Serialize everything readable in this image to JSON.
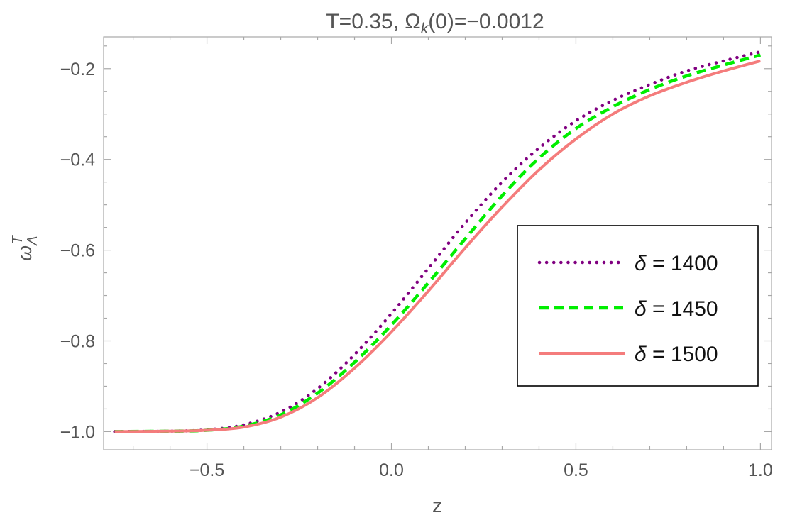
{
  "chart_data": {
    "type": "line",
    "title": "T=0.35, Ω_k(0)=−0.0012",
    "title_parts": {
      "prefix": "T=0.35, Ω",
      "subscript": "k",
      "suffix": "(0)=−0.0012"
    },
    "xlabel": "z",
    "ylabel": {
      "symbol": "ω",
      "superscript": "T",
      "subscript": "Λ"
    },
    "xlim": [
      -0.78,
      1.03
    ],
    "ylim": [
      -1.04,
      -0.13
    ],
    "x_ticks": [
      -0.5,
      0.0,
      0.5,
      1.0
    ],
    "x_tick_labels": [
      "−0.5",
      "0.0",
      "0.5",
      "1.0"
    ],
    "y_ticks": [
      -1.0,
      -0.8,
      -0.6,
      -0.4,
      -0.2
    ],
    "y_tick_labels": [
      "−1.0",
      "−0.8",
      "−0.6",
      "−0.4",
      "−0.2"
    ],
    "grid": false,
    "legend_position": "right",
    "x": [
      -0.75,
      -0.6,
      -0.5,
      -0.4,
      -0.3,
      -0.2,
      -0.1,
      0.0,
      0.1,
      0.2,
      0.3,
      0.4,
      0.5,
      0.6,
      0.7,
      0.8,
      0.9,
      1.0
    ],
    "series": [
      {
        "name": "δ = 1400",
        "legend_symbol": "δ",
        "legend_value": " = 1400",
        "color": "#800080",
        "style": "dotted",
        "values": [
          -1.0,
          -0.999,
          -0.996,
          -0.985,
          -0.957,
          -0.905,
          -0.83,
          -0.74,
          -0.64,
          -0.54,
          -0.45,
          -0.375,
          -0.315,
          -0.27,
          -0.235,
          -0.205,
          -0.183,
          -0.163
        ]
      },
      {
        "name": "δ = 1450",
        "legend_symbol": "δ",
        "legend_value": " = 1450",
        "color": "#00ee00",
        "style": "dashed",
        "values": [
          -1.0,
          -0.999,
          -0.997,
          -0.988,
          -0.963,
          -0.915,
          -0.847,
          -0.765,
          -0.672,
          -0.575,
          -0.48,
          -0.397,
          -0.332,
          -0.284,
          -0.246,
          -0.216,
          -0.192,
          -0.17
        ]
      },
      {
        "name": "δ = 1500",
        "legend_symbol": "δ",
        "legend_value": " = 1500",
        "color": "#f47c7c",
        "style": "solid",
        "values": [
          -1.0,
          -0.999,
          -0.997,
          -0.99,
          -0.968,
          -0.925,
          -0.86,
          -0.78,
          -0.69,
          -0.595,
          -0.505,
          -0.423,
          -0.355,
          -0.3,
          -0.26,
          -0.23,
          -0.205,
          -0.183
        ]
      }
    ]
  }
}
